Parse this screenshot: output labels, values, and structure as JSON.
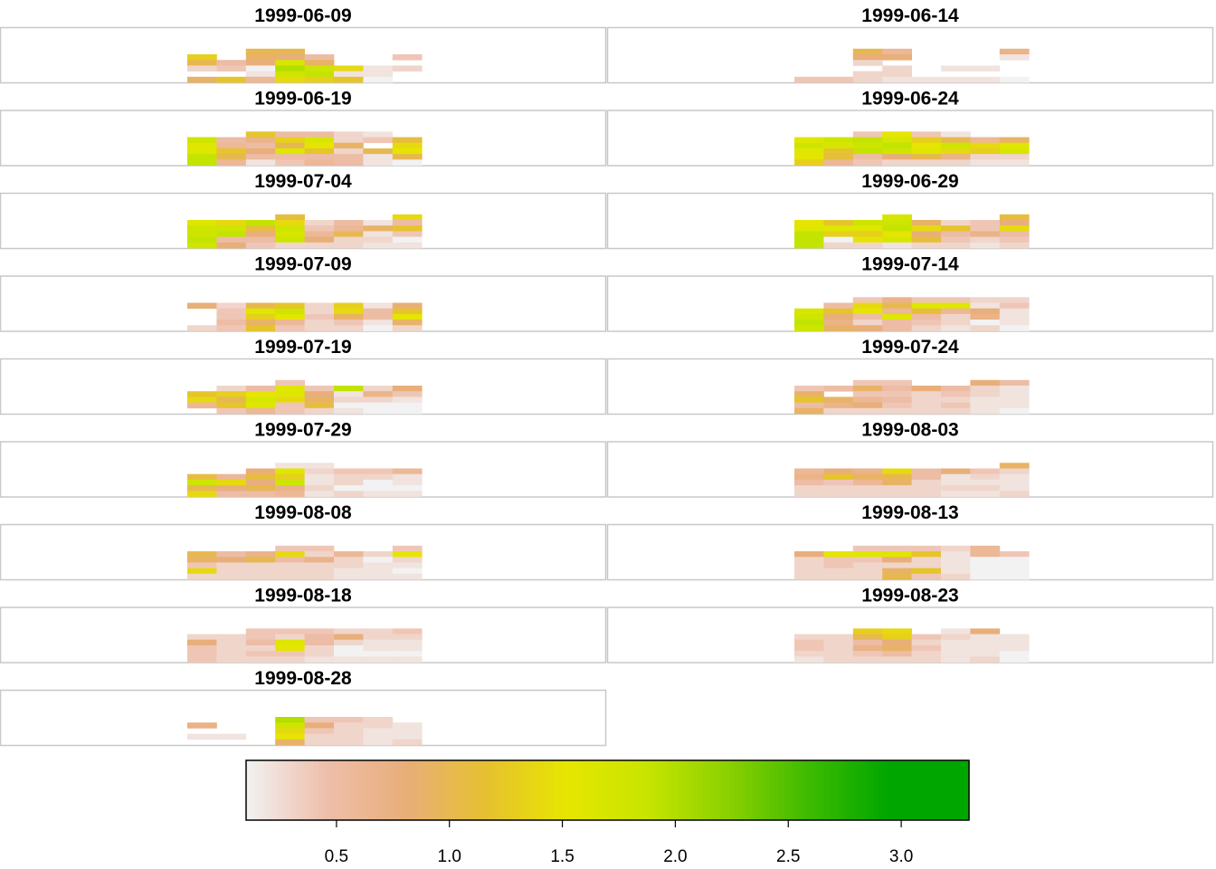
{
  "chart_data": {
    "type": "heatmap",
    "layout": {
      "columns": 2,
      "rows": 9
    },
    "panel_grid": {
      "cols": 8,
      "rows": 6
    },
    "value_range": [
      0.1,
      3.3
    ],
    "colorbar": {
      "ticks": [
        0.5,
        1.0,
        1.5,
        2.0,
        2.5,
        3.0
      ],
      "tick_labels": [
        "0.5",
        "1.0",
        "1.5",
        "2.0",
        "2.5",
        "3.0"
      ],
      "orientation": "horizontal",
      "placement": "bottom"
    },
    "colormap": [
      "#F2F2F2",
      "#EEBEAB",
      "#E8AE78",
      "#E6C12F",
      "#E6E600",
      "#C7E500",
      "#8BD000",
      "#3EBB00",
      "#00A600",
      "#00A600"
    ],
    "panels": [
      {
        "date": "1999-06-09",
        "values": [
          [
            null,
            null,
            1.0,
            1.0,
            null,
            null,
            null,
            null
          ],
          [
            1.3,
            null,
            0.9,
            0.8,
            0.5,
            null,
            null,
            0.4
          ],
          [
            1.0,
            0.5,
            0.8,
            1.7,
            0.9,
            null,
            null,
            null
          ],
          [
            0.3,
            0.4,
            0.1,
            2.0,
            1.8,
            1.4,
            0.2,
            0.3
          ],
          [
            null,
            null,
            0.2,
            1.8,
            1.9,
            0.2,
            0.2,
            null
          ],
          [
            0.9,
            1.2,
            0.6,
            1.4,
            1.3,
            1.2,
            0.1,
            null
          ]
        ]
      },
      {
        "date": "1999-06-14",
        "values": [
          [
            null,
            null,
            1.0,
            0.6,
            null,
            null,
            null,
            0.7
          ],
          [
            null,
            null,
            0.8,
            0.8,
            null,
            null,
            null,
            0.2
          ],
          [
            null,
            null,
            0.3,
            null,
            null,
            null,
            null,
            null
          ],
          [
            null,
            null,
            null,
            0.3,
            null,
            0.2,
            0.2,
            null
          ],
          [
            null,
            null,
            0.3,
            0.3,
            null,
            null,
            null,
            null
          ],
          [
            0.4,
            0.4,
            0.3,
            0.2,
            0.2,
            0.2,
            0.2,
            0.1
          ]
        ]
      },
      {
        "date": "1999-06-19",
        "values": [
          [
            null,
            null,
            1.2,
            0.5,
            0.5,
            0.3,
            0.2,
            null
          ],
          [
            1.8,
            0.5,
            0.7,
            1.3,
            1.7,
            0.3,
            0.4,
            1.1
          ],
          [
            1.6,
            0.6,
            0.5,
            1.0,
            1.5,
            0.9,
            null,
            1.4
          ],
          [
            1.6,
            1.2,
            0.8,
            1.6,
            1.2,
            0.3,
            1.0,
            1.5
          ],
          [
            1.9,
            1.0,
            0.5,
            0.5,
            0.5,
            0.5,
            0.2,
            1.0
          ],
          [
            1.9,
            0.6,
            0.2,
            0.4,
            0.6,
            0.5,
            0.2,
            0.1
          ]
        ]
      },
      {
        "date": "1999-06-24",
        "values": [
          [
            null,
            null,
            0.4,
            1.5,
            0.4,
            0.2,
            null,
            null
          ],
          [
            1.6,
            1.8,
            1.9,
            1.7,
            1.3,
            1.0,
            0.6,
            0.9
          ],
          [
            1.8,
            1.7,
            1.8,
            1.9,
            1.5,
            1.8,
            1.4,
            1.6
          ],
          [
            1.6,
            1.2,
            1.9,
            1.8,
            1.6,
            1.4,
            1.3,
            1.7
          ],
          [
            1.5,
            1.1,
            0.5,
            0.8,
            1.0,
            0.7,
            0.3,
            0.3
          ],
          [
            1.3,
            0.6,
            0.4,
            0.3,
            0.3,
            0.3,
            0.2,
            0.2
          ]
        ]
      },
      {
        "date": "1999-07-04",
        "values": [
          [
            null,
            null,
            null,
            1.1,
            null,
            null,
            null,
            1.4
          ],
          [
            1.6,
            1.4,
            1.9,
            1.4,
            0.3,
            0.5,
            0.2,
            0.5
          ],
          [
            1.8,
            1.8,
            1.1,
            1.8,
            0.4,
            0.6,
            0.9,
            1.2
          ],
          [
            1.8,
            1.9,
            0.8,
            1.7,
            0.6,
            1.0,
            0.2,
            0.4
          ],
          [
            1.9,
            0.5,
            0.5,
            1.8,
            0.8,
            0.3,
            0.3,
            0.1
          ],
          [
            1.8,
            0.8,
            0.4,
            0.3,
            0.3,
            0.3,
            0.2,
            0.2
          ]
        ]
      },
      {
        "date": "1999-06-29",
        "values": [
          [
            null,
            null,
            null,
            1.7,
            null,
            null,
            null,
            1.1
          ],
          [
            1.5,
            1.2,
            1.8,
            1.8,
            0.9,
            0.3,
            0.4,
            0.8
          ],
          [
            1.6,
            1.6,
            1.6,
            1.9,
            1.4,
            1.2,
            0.4,
            1.4
          ],
          [
            1.9,
            1.3,
            1.3,
            1.5,
            0.8,
            0.5,
            0.7,
            0.5
          ],
          [
            1.9,
            0.1,
            1.5,
            1.7,
            1.1,
            0.4,
            0.3,
            0.4
          ],
          [
            1.9,
            0.3,
            0.3,
            0.2,
            0.3,
            0.3,
            0.2,
            0.3
          ]
        ]
      },
      {
        "date": "1999-07-09",
        "values": [
          [
            null,
            null,
            null,
            null,
            null,
            null,
            null,
            null
          ],
          [
            0.8,
            0.3,
            1.0,
            1.2,
            0.3,
            1.3,
            0.2,
            0.8
          ],
          [
            null,
            0.4,
            1.6,
            1.8,
            0.3,
            1.4,
            0.5,
            1.2
          ],
          [
            null,
            0.4,
            1.3,
            1.5,
            0.4,
            0.9,
            0.5,
            1.5
          ],
          [
            null,
            0.5,
            0.9,
            0.6,
            0.3,
            0.4,
            0.2,
            0.9
          ],
          [
            0.3,
            0.4,
            1.2,
            0.4,
            0.3,
            0.3,
            0.1,
            0.3
          ]
        ]
      },
      {
        "date": "1999-07-14",
        "values": [
          [
            null,
            null,
            0.4,
            0.7,
            0.4,
            0.4,
            0.3,
            0.3
          ],
          [
            null,
            0.5,
            1.4,
            1.0,
            1.6,
            1.6,
            0.2,
            0.4
          ],
          [
            1.7,
            1.2,
            1.5,
            0.6,
            1.1,
            0.6,
            0.8,
            0.2
          ],
          [
            1.8,
            0.8,
            0.5,
            1.6,
            0.5,
            0.3,
            0.7,
            0.2
          ],
          [
            1.9,
            0.7,
            0.3,
            0.5,
            0.4,
            0.3,
            0.1,
            0.2
          ],
          [
            1.8,
            0.9,
            0.8,
            0.5,
            0.3,
            0.2,
            0.3,
            0.1
          ]
        ]
      },
      {
        "date": "1999-07-19",
        "values": [
          [
            null,
            null,
            null,
            0.4,
            null,
            null,
            null,
            null
          ],
          [
            null,
            0.3,
            0.5,
            1.6,
            0.4,
            1.9,
            0.3,
            0.8
          ],
          [
            1.2,
            1.3,
            1.5,
            1.6,
            0.8,
            0.2,
            0.7,
            0.4
          ],
          [
            1.4,
            1.0,
            1.7,
            1.4,
            0.9,
            0.3,
            0.3,
            0.2
          ],
          [
            0.6,
            1.2,
            1.6,
            0.4,
            1.1,
            0.1,
            0.1,
            0.1
          ],
          [
            null,
            0.4,
            0.6,
            0.4,
            0.3,
            0.2,
            0.1,
            0.1
          ]
        ]
      },
      {
        "date": "1999-07-24",
        "values": [
          [
            null,
            null,
            0.4,
            0.4,
            null,
            null,
            0.8,
            0.5
          ],
          [
            0.4,
            0.5,
            0.9,
            0.5,
            0.8,
            0.5,
            0.3,
            0.2
          ],
          [
            0.9,
            null,
            0.4,
            0.4,
            0.3,
            0.4,
            0.3,
            0.2
          ],
          [
            1.2,
            0.9,
            0.6,
            0.5,
            0.3,
            0.3,
            0.2,
            0.2
          ],
          [
            0.5,
            0.7,
            0.8,
            0.4,
            0.3,
            0.4,
            0.2,
            0.2
          ],
          [
            0.9,
            0.3,
            0.3,
            0.3,
            0.3,
            0.3,
            0.2,
            0.1
          ]
        ]
      },
      {
        "date": "1999-07-29",
        "values": [
          [
            null,
            null,
            null,
            0.2,
            0.2,
            null,
            null,
            null
          ],
          [
            null,
            null,
            0.8,
            1.6,
            0.3,
            0.4,
            0.4,
            0.6
          ],
          [
            1.1,
            0.6,
            1.1,
            1.3,
            0.2,
            0.3,
            0.3,
            0.2
          ],
          [
            1.8,
            1.4,
            0.8,
            1.8,
            0.2,
            0.3,
            0.1,
            0.2
          ],
          [
            1.0,
            0.8,
            1.0,
            0.7,
            0.3,
            0.1,
            0.1,
            0.1
          ],
          [
            1.4,
            0.5,
            0.5,
            0.6,
            0.2,
            0.3,
            0.2,
            0.2
          ]
        ]
      },
      {
        "date": "1999-08-03",
        "values": [
          [
            null,
            null,
            null,
            null,
            null,
            null,
            null,
            0.9
          ],
          [
            0.6,
            0.8,
            0.7,
            1.4,
            0.5,
            0.8,
            0.4,
            0.3
          ],
          [
            0.7,
            1.2,
            0.9,
            1.0,
            0.5,
            0.2,
            0.3,
            0.2
          ],
          [
            0.5,
            0.4,
            0.6,
            0.9,
            0.3,
            0.2,
            0.2,
            0.2
          ],
          [
            0.3,
            0.3,
            0.3,
            0.3,
            0.3,
            0.3,
            0.3,
            0.2
          ],
          [
            0.3,
            0.3,
            0.3,
            0.3,
            0.3,
            0.2,
            0.2,
            0.3
          ]
        ]
      },
      {
        "date": "1999-08-08",
        "values": [
          [
            null,
            null,
            null,
            0.4,
            0.4,
            null,
            null,
            0.4
          ],
          [
            1.0,
            0.5,
            0.7,
            1.4,
            0.3,
            0.6,
            0.3,
            1.5
          ],
          [
            0.9,
            0.8,
            1.0,
            0.5,
            0.7,
            0.3,
            0.1,
            0.3
          ],
          [
            0.4,
            0.3,
            0.3,
            0.3,
            0.3,
            0.3,
            0.2,
            0.2
          ],
          [
            1.4,
            0.3,
            0.3,
            0.3,
            0.3,
            0.2,
            0.2,
            0.1
          ],
          [
            0.3,
            0.3,
            0.3,
            0.3,
            0.3,
            0.2,
            0.2,
            0.2
          ]
        ]
      },
      {
        "date": "1999-08-13",
        "values": [
          [
            null,
            null,
            0.4,
            0.4,
            0.4,
            0.3,
            0.6,
            null
          ],
          [
            0.8,
            1.5,
            1.6,
            1.6,
            1.2,
            0.2,
            0.6,
            0.4
          ],
          [
            0.3,
            0.4,
            0.4,
            0.8,
            0.3,
            0.2,
            0.1,
            0.1
          ],
          [
            0.3,
            0.4,
            0.3,
            0.3,
            0.3,
            0.2,
            0.1,
            0.1
          ],
          [
            0.3,
            0.3,
            0.3,
            0.9,
            1.2,
            0.2,
            0.1,
            0.1
          ],
          [
            0.3,
            0.3,
            0.3,
            1.0,
            0.4,
            0.3,
            0.1,
            0.1
          ]
        ]
      },
      {
        "date": "1999-08-18",
        "values": [
          [
            null,
            null,
            0.4,
            0.4,
            0.4,
            0.3,
            0.3,
            0.4
          ],
          [
            0.3,
            0.3,
            0.4,
            0.3,
            0.5,
            0.8,
            0.3,
            0.3
          ],
          [
            0.8,
            0.3,
            0.5,
            1.6,
            0.5,
            0.3,
            0.2,
            0.2
          ],
          [
            0.4,
            0.3,
            0.3,
            1.5,
            0.3,
            0.1,
            0.2,
            0.2
          ],
          [
            0.4,
            0.3,
            0.4,
            0.4,
            0.3,
            0.1,
            0.1,
            0.1
          ],
          [
            0.4,
            0.3,
            0.3,
            0.3,
            0.2,
            0.2,
            0.2,
            0.2
          ]
        ]
      },
      {
        "date": "1999-08-23",
        "values": [
          [
            null,
            null,
            1.3,
            1.4,
            null,
            0.2,
            0.8,
            null
          ],
          [
            0.3,
            0.3,
            1.0,
            1.3,
            0.4,
            0.3,
            0.2,
            0.2
          ],
          [
            0.4,
            0.3,
            0.5,
            0.8,
            0.3,
            0.2,
            0.2,
            0.2
          ],
          [
            0.4,
            0.3,
            0.7,
            0.9,
            0.4,
            0.2,
            0.2,
            0.2
          ],
          [
            0.3,
            0.3,
            0.4,
            0.5,
            0.3,
            0.2,
            0.2,
            0.1
          ],
          [
            0.2,
            0.3,
            0.3,
            0.3,
            0.3,
            0.2,
            0.3,
            0.1
          ]
        ]
      },
      {
        "date": "1999-08-28",
        "values": [
          [
            null,
            null,
            null,
            null,
            null,
            null,
            null,
            null
          ],
          [
            null,
            null,
            null,
            2.0,
            0.4,
            0.4,
            0.3,
            null
          ],
          [
            0.7,
            null,
            null,
            1.8,
            0.8,
            0.3,
            0.3,
            0.2
          ],
          [
            null,
            null,
            null,
            1.4,
            0.4,
            0.3,
            0.2,
            0.2
          ],
          [
            0.2,
            0.2,
            null,
            1.5,
            0.3,
            0.3,
            0.2,
            0.2
          ],
          [
            null,
            null,
            null,
            0.9,
            0.3,
            0.3,
            0.2,
            0.3
          ]
        ]
      }
    ]
  }
}
